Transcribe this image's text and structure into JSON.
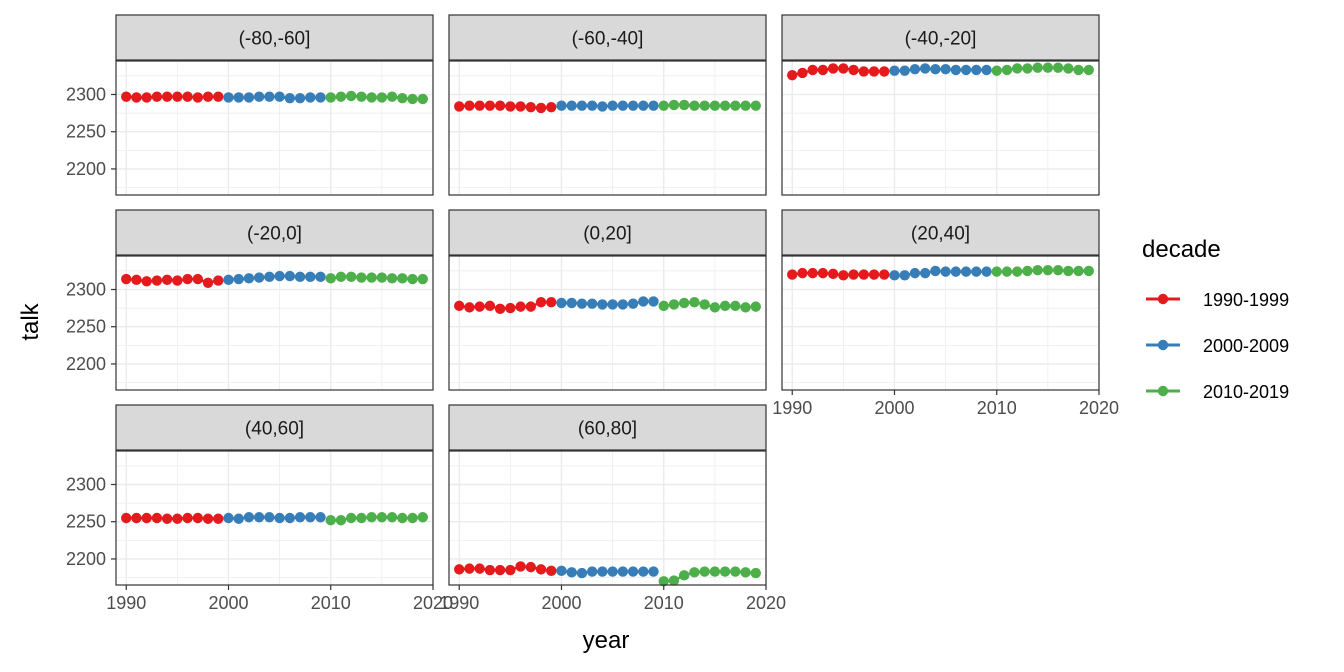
{
  "chart_data": {
    "type": "line",
    "xlabel": "year",
    "ylabel": "talk",
    "xlim": [
      1989,
      2020
    ],
    "ylim": [
      2165,
      2345
    ],
    "x_ticks": [
      1990,
      2000,
      2010,
      2020
    ],
    "x_tick_labels": [
      "1990",
      "2000",
      "2010",
      "2020"
    ],
    "y_ticks": [
      2200,
      2250,
      2300
    ],
    "y_tick_labels": [
      "2200",
      "2250",
      "2300"
    ],
    "grid": true,
    "legend": {
      "title": "decade",
      "position": "right",
      "entries": [
        {
          "label": "1990-1999",
          "color": "#e41a1c"
        },
        {
          "label": "2000-2009",
          "color": "#377eb8"
        },
        {
          "label": "2010-2019",
          "color": "#4daf4a"
        }
      ]
    },
    "x": [
      1990,
      1991,
      1992,
      1993,
      1994,
      1995,
      1996,
      1997,
      1998,
      1999,
      2000,
      2001,
      2002,
      2003,
      2004,
      2005,
      2006,
      2007,
      2008,
      2009,
      2010,
      2011,
      2012,
      2013,
      2014,
      2015,
      2016,
      2017,
      2018,
      2019
    ],
    "facets": [
      {
        "label": "(-80,-60]",
        "values": [
          2297,
          2296,
          2296,
          2297,
          2297,
          2297,
          2297,
          2296,
          2297,
          2297,
          2296,
          2296,
          2296,
          2297,
          2297,
          2297,
          2295,
          2295,
          2296,
          2296,
          2296,
          2297,
          2298,
          2297,
          2296,
          2296,
          2297,
          2295,
          2294,
          2294
        ]
      },
      {
        "label": "(-60,-40]",
        "values": [
          2284,
          2285,
          2285,
          2285,
          2285,
          2284,
          2284,
          2283,
          2282,
          2283,
          2285,
          2285,
          2285,
          2285,
          2284,
          2285,
          2285,
          2285,
          2285,
          2285,
          2285,
          2286,
          2286,
          2285,
          2285,
          2285,
          2285,
          2285,
          2285,
          2285
        ]
      },
      {
        "label": "(-40,-20]",
        "values": [
          2326,
          2329,
          2333,
          2333,
          2335,
          2335,
          2333,
          2331,
          2331,
          2331,
          2332,
          2332,
          2334,
          2335,
          2334,
          2334,
          2333,
          2333,
          2333,
          2333,
          2332,
          2333,
          2335,
          2335,
          2336,
          2336,
          2336,
          2335,
          2333,
          2333
        ]
      },
      {
        "label": "(-20,0]",
        "values": [
          2314,
          2313,
          2311,
          2312,
          2313,
          2312,
          2314,
          2314,
          2309,
          2312,
          2313,
          2314,
          2315,
          2316,
          2317,
          2318,
          2318,
          2317,
          2317,
          2317,
          2315,
          2317,
          2317,
          2316,
          2316,
          2316,
          2315,
          2315,
          2314,
          2314
        ]
      },
      {
        "label": "(0,20]",
        "values": [
          2278,
          2276,
          2277,
          2278,
          2274,
          2275,
          2277,
          2277,
          2283,
          2283,
          2282,
          2282,
          2281,
          2281,
          2280,
          2280,
          2280,
          2281,
          2284,
          2284,
          2278,
          2280,
          2282,
          2283,
          2280,
          2276,
          2278,
          2278,
          2276,
          2277
        ]
      },
      {
        "label": "(20,40]",
        "values": [
          2320,
          2322,
          2322,
          2322,
          2321,
          2319,
          2320,
          2320,
          2320,
          2320,
          2319,
          2319,
          2322,
          2322,
          2325,
          2324,
          2324,
          2324,
          2324,
          2324,
          2324,
          2324,
          2324,
          2325,
          2326,
          2326,
          2326,
          2325,
          2325,
          2325
        ]
      },
      {
        "label": "(40,60]",
        "values": [
          2255,
          2255,
          2255,
          2255,
          2254,
          2254,
          2255,
          2255,
          2254,
          2254,
          2255,
          2254,
          2256,
          2256,
          2256,
          2255,
          2255,
          2256,
          2256,
          2256,
          2252,
          2252,
          2255,
          2255,
          2256,
          2256,
          2256,
          2255,
          2255,
          2256
        ]
      },
      {
        "label": "(60,80]",
        "values": [
          2186,
          2187,
          2187,
          2185,
          2185,
          2185,
          2190,
          2189,
          2186,
          2184,
          2184,
          2182,
          2181,
          2183,
          2183,
          2183,
          2183,
          2183,
          2183,
          2183,
          2170,
          2171,
          2178,
          2182,
          2183,
          2183,
          2183,
          2183,
          2182,
          2181
        ]
      }
    ]
  }
}
